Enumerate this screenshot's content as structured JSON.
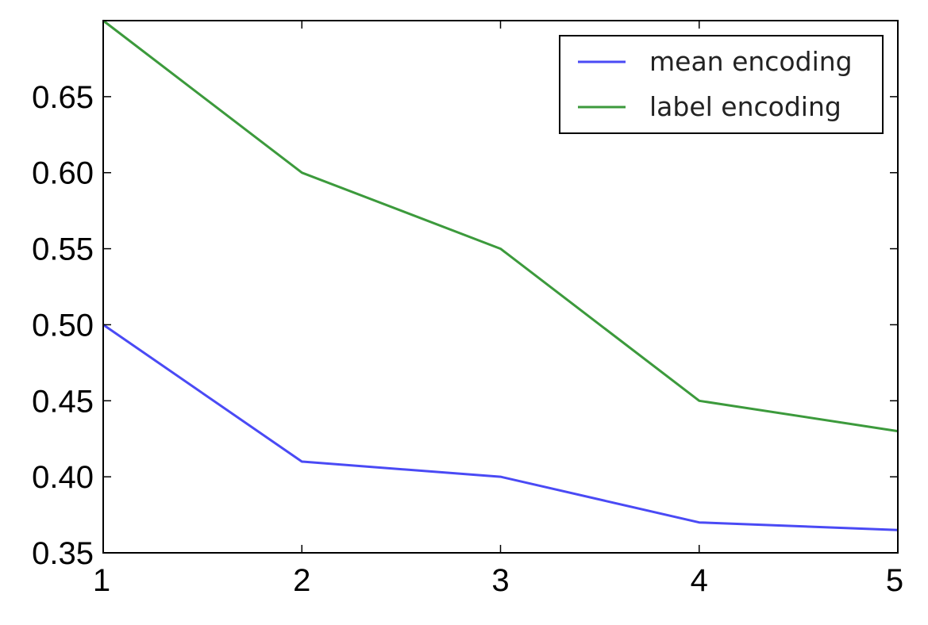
{
  "chart_data": {
    "type": "line",
    "title": "",
    "xlabel": "",
    "ylabel": "",
    "x": [
      1,
      2,
      3,
      4,
      5
    ],
    "xlim": [
      1,
      5
    ],
    "ylim": [
      0.35,
      0.7
    ],
    "xticks": [
      "1",
      "2",
      "3",
      "4",
      "5"
    ],
    "yticks": [
      "0.35",
      "0.40",
      "0.45",
      "0.50",
      "0.55",
      "0.60",
      "0.65"
    ],
    "ytick_values": [
      0.35,
      0.4,
      0.45,
      0.5,
      0.55,
      0.6,
      0.65
    ],
    "grid": false,
    "legend_position": "top-right",
    "series": [
      {
        "name": "mean encoding",
        "color": "#4a4af5",
        "values": [
          0.5,
          0.41,
          0.4,
          0.37,
          0.365
        ]
      },
      {
        "name": "label encoding",
        "color": "#3c9a3c",
        "values": [
          0.7,
          0.6,
          0.55,
          0.45,
          0.43
        ]
      }
    ]
  }
}
